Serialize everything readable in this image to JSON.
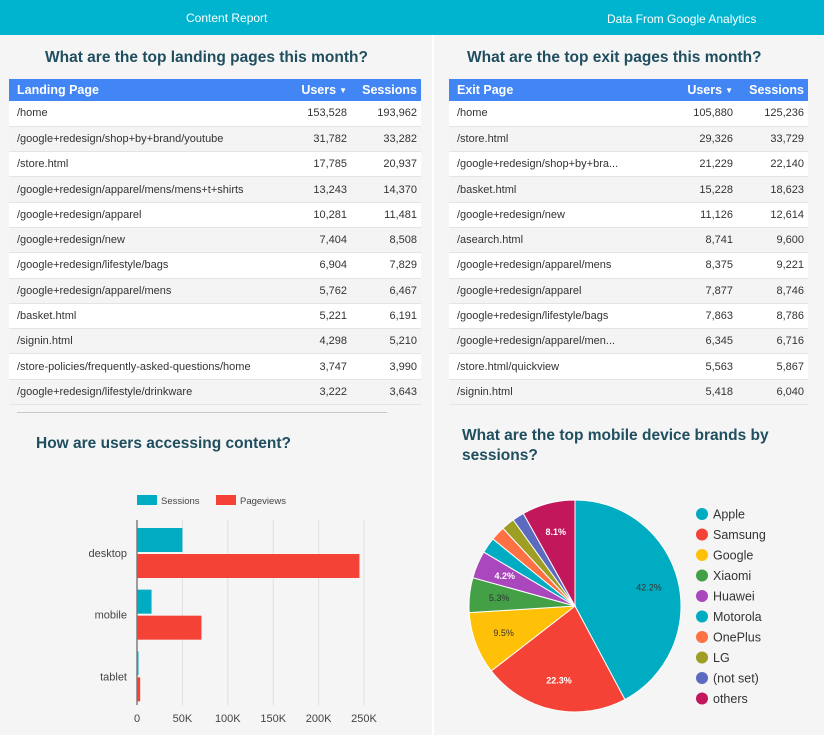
{
  "header": {
    "left_title": "Content  Report",
    "right_title": "Data From Google Analytics"
  },
  "landing": {
    "title": "What are the top landing pages this month?",
    "columns": [
      "Landing Page",
      "Users",
      "Sessions"
    ],
    "sort_indicator": "▼",
    "rows": [
      [
        "/home",
        "153,528",
        "193,962"
      ],
      [
        "/google+redesign/shop+by+brand/youtube",
        "31,782",
        "33,282"
      ],
      [
        "/store.html",
        "17,785",
        "20,937"
      ],
      [
        "/google+redesign/apparel/mens/mens+t+shirts",
        "13,243",
        "14,370"
      ],
      [
        "/google+redesign/apparel",
        "10,281",
        "11,481"
      ],
      [
        "/google+redesign/new",
        "7,404",
        "8,508"
      ],
      [
        "/google+redesign/lifestyle/bags",
        "6,904",
        "7,829"
      ],
      [
        "/google+redesign/apparel/mens",
        "5,762",
        "6,467"
      ],
      [
        "/basket.html",
        "5,221",
        "6,191"
      ],
      [
        "/signin.html",
        "4,298",
        "5,210"
      ],
      [
        "/store-policies/frequently-asked-questions/home",
        "3,747",
        "3,990"
      ],
      [
        "/google+redesign/lifestyle/drinkware",
        "3,222",
        "3,643"
      ]
    ]
  },
  "exit": {
    "title": "What are the top exit pages this month?",
    "columns": [
      "Exit Page",
      "Users",
      "Sessions"
    ],
    "sort_indicator": "▼",
    "rows": [
      [
        "/home",
        "105,880",
        "125,236"
      ],
      [
        "/store.html",
        "29,326",
        "33,729"
      ],
      [
        "/google+redesign/shop+by+bra...",
        "21,229",
        "22,140"
      ],
      [
        "/basket.html",
        "15,228",
        "18,623"
      ],
      [
        "/google+redesign/new",
        "11,126",
        "12,614"
      ],
      [
        "/asearch.html",
        "8,741",
        "9,600"
      ],
      [
        "/google+redesign/apparel/mens",
        "8,375",
        "9,221"
      ],
      [
        "/google+redesign/apparel",
        "7,877",
        "8,746"
      ],
      [
        "/google+redesign/lifestyle/bags",
        "7,863",
        "8,786"
      ],
      [
        "/google+redesign/apparel/men...",
        "6,345",
        "6,716"
      ],
      [
        "/store.html/quickview",
        "5,563",
        "5,867"
      ],
      [
        "/signin.html",
        "5,418",
        "6,040"
      ]
    ]
  },
  "chart_data": [
    {
      "type": "bar",
      "orientation": "horizontal",
      "title": "How are users accessing content?",
      "categories": [
        "desktop",
        "mobile",
        "tablet"
      ],
      "series": [
        {
          "name": "Sessions",
          "values": [
            50000,
            16000,
            1000
          ],
          "color": "#00acc1"
        },
        {
          "name": "Pageviews",
          "values": [
            245000,
            71000,
            3500
          ],
          "color": "#f44336"
        }
      ],
      "xlim": [
        0,
        250000
      ],
      "xticks": [
        "0",
        "50K",
        "100K",
        "150K",
        "200K",
        "250K"
      ],
      "legend_position": "top"
    },
    {
      "type": "pie",
      "title": "What are the top mobile device brands by sessions?",
      "legend_position": "right",
      "slices": [
        {
          "label": "Apple",
          "value": 42.2,
          "display": "42.2%",
          "color": "#00acc1"
        },
        {
          "label": "Samsung",
          "value": 22.3,
          "display": "22.3%",
          "color": "#f44336"
        },
        {
          "label": "Google",
          "value": 9.5,
          "display": "9.5%",
          "color": "#ffc107"
        },
        {
          "label": "Xiaomi",
          "value": 5.3,
          "display": "5.3%",
          "color": "#43a047"
        },
        {
          "label": "Huawei",
          "value": 4.2,
          "display": "4.2%",
          "color": "#ab47bc"
        },
        {
          "label": "Motorola",
          "value": 2.4,
          "display": "",
          "color": "#00acc1"
        },
        {
          "label": "OnePlus",
          "value": 2.2,
          "display": "",
          "color": "#ff7043"
        },
        {
          "label": "LG",
          "value": 2.0,
          "display": "",
          "color": "#9e9d24"
        },
        {
          "label": "(not set)",
          "value": 1.8,
          "display": "",
          "color": "#5c6bc0"
        },
        {
          "label": "others",
          "value": 8.1,
          "display": "8.1%",
          "color": "#c2185b"
        }
      ]
    }
  ]
}
